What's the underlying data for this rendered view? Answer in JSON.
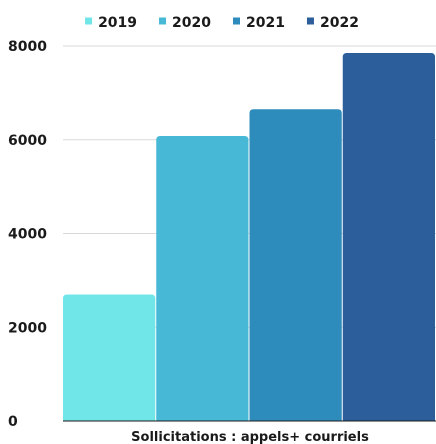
{
  "chart_data": {
    "type": "bar",
    "categories": [
      "Sollicitations : appels+ courriels"
    ],
    "series": [
      {
        "name": "2019",
        "values": [
          2700
        ],
        "color": "#71e6e8"
      },
      {
        "name": "2020",
        "values": [
          6080
        ],
        "color": "#47b9d7"
      },
      {
        "name": "2021",
        "values": [
          6650
        ],
        "color": "#2e8cbd"
      },
      {
        "name": "2022",
        "values": [
          7850
        ],
        "color": "#2d5e9c"
      }
    ],
    "xlabel": "Sollicitations : appels+ courriels",
    "ylabel": "",
    "ylim": [
      0,
      8000
    ],
    "yticks": [
      {
        "value": 0,
        "label": "0"
      },
      {
        "value": 2000,
        "label": "2000"
      },
      {
        "value": 4000,
        "label": "4000"
      },
      {
        "value": 6000,
        "label": "6000"
      },
      {
        "value": 8000,
        "label": "8000"
      }
    ],
    "grid": true,
    "legend_position": "top"
  }
}
